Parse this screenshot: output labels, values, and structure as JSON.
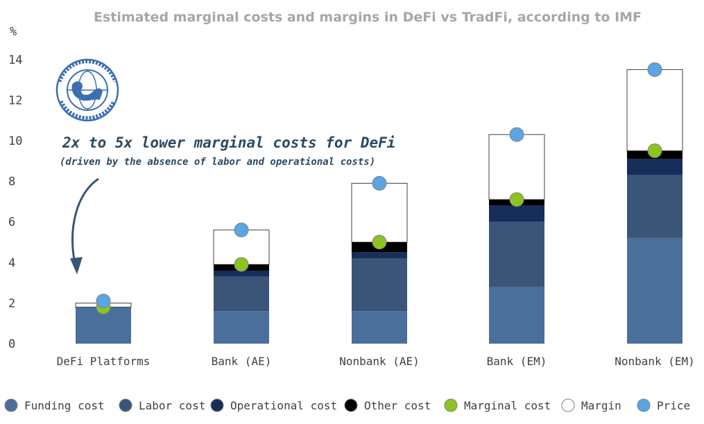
{
  "chart_data": {
    "type": "bar",
    "stacked": true,
    "title": "Estimated marginal costs and margins in DeFi vs TradFi, according to IMF",
    "y_unit": "%",
    "ylim": [
      0,
      14
    ],
    "yticks": [
      0,
      2,
      4,
      6,
      8,
      10,
      12,
      14
    ],
    "grid": false,
    "legend_position": "bottom",
    "categories": [
      "DeFi Platforms",
      "Bank (AE)",
      "Nonbank (AE)",
      "Bank (EM)",
      "Nonbank (EM)"
    ],
    "series": [
      {
        "name": "Funding cost",
        "kind": "bar",
        "color": "#4a6f9b",
        "values": [
          1.8,
          1.6,
          1.6,
          2.8,
          5.2
        ]
      },
      {
        "name": "Labor cost",
        "kind": "bar",
        "color": "#3a5577",
        "values": [
          0.0,
          1.7,
          2.6,
          3.2,
          3.1
        ]
      },
      {
        "name": "Operational cost",
        "kind": "bar",
        "color": "#172e5a",
        "values": [
          0.0,
          0.3,
          0.3,
          0.8,
          0.8
        ]
      },
      {
        "name": "Other cost",
        "kind": "bar",
        "color": "#000000",
        "values": [
          0.0,
          0.3,
          0.5,
          0.3,
          0.4
        ]
      },
      {
        "name": "Margin",
        "kind": "bar",
        "color": "#ffffff",
        "values": [
          0.2,
          1.7,
          2.9,
          3.2,
          4.0
        ]
      },
      {
        "name": "Marginal cost",
        "kind": "marker",
        "color": "#8cc31e",
        "values": [
          1.8,
          3.9,
          5.0,
          7.1,
          9.5
        ]
      },
      {
        "name": "Price",
        "kind": "marker",
        "color": "#5aa5e6",
        "values": [
          2.1,
          5.6,
          7.9,
          10.3,
          13.5
        ]
      }
    ],
    "annotations": [
      "2x to 5x lower marginal costs for DeFi",
      "(driven by the absence of labor and operational costs)"
    ]
  },
  "legend": [
    {
      "label": "Funding cost",
      "color": "#4a6f9b"
    },
    {
      "label": "Labor cost",
      "color": "#3a5577"
    },
    {
      "label": "Operational cost",
      "color": "#172e5a"
    },
    {
      "label": "Other cost",
      "color": "#000000"
    },
    {
      "label": "Marginal cost",
      "color": "#8cc31e"
    },
    {
      "label": "Margin",
      "color": "#ffffff"
    },
    {
      "label": "Price",
      "color": "#5aa5e6"
    }
  ],
  "logo": {
    "text": "INTERNATIONAL MONETARY FUND",
    "icon": "imf-seal-icon"
  }
}
